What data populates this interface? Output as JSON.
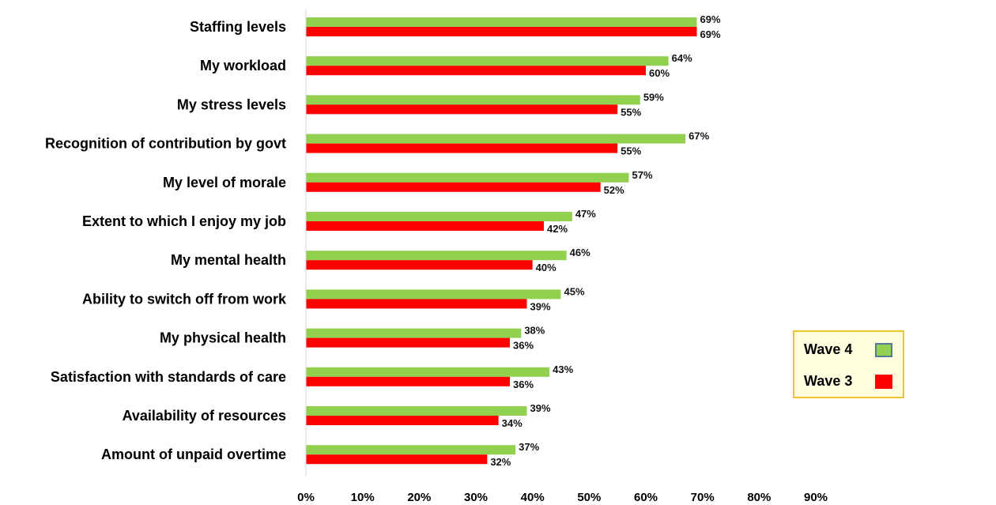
{
  "chart_data": {
    "type": "bar",
    "orientation": "horizontal",
    "categories": [
      "Staffing levels",
      "My workload",
      "My stress levels",
      "Recognition of contribution by govt",
      "My level of morale",
      "Extent to which I enjoy my job",
      "My mental health",
      "Ability to switch off from work",
      "My physical health",
      "Satisfaction with standards of care",
      "Availability of resources",
      "Amount of unpaid overtime"
    ],
    "series": [
      {
        "name": "Wave 4",
        "color": "#92d050",
        "values": [
          69,
          64,
          59,
          67,
          57,
          47,
          46,
          45,
          38,
          43,
          39,
          37
        ],
        "labels": [
          "69%",
          "64%",
          "59%",
          "67%",
          "57%",
          "47%",
          "46%",
          "45%",
          "38%",
          "43%",
          "39%",
          "37%"
        ]
      },
      {
        "name": "Wave 3",
        "color": "#ff0000",
        "values": [
          69,
          60,
          55,
          55,
          52,
          42,
          40,
          39,
          36,
          36,
          34,
          32
        ],
        "labels": [
          "69%",
          "60%",
          "55%",
          "55%",
          "52%",
          "42%",
          "40%",
          "39%",
          "36%",
          "36%",
          "34%",
          "32%"
        ]
      }
    ],
    "xlim": [
      0,
      90
    ],
    "xticks": [
      "0%",
      "10%",
      "20%",
      "30%",
      "40%",
      "50%",
      "60%",
      "70%",
      "80%",
      "90%"
    ],
    "grid": false,
    "legend_position": "bottom-right"
  },
  "legend": {
    "wave4_label": "Wave 4",
    "wave3_label": "Wave 3",
    "wave4_border": "#5a7a9a"
  }
}
